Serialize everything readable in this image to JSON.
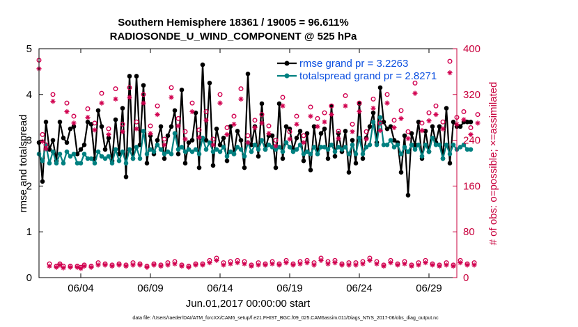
{
  "chart_data": {
    "type": "line",
    "title_line1": "Southern Hemisphere 18361 / 19005 = 96.611%",
    "title_line2": "RADIOSONDE_U_WIND_COMPONENT @ 525 hPa",
    "xlabel": "Jun.01,2017 00:00:00 start",
    "ylabel_left": "rmse and totalspread",
    "ylabel_right": "# of obs: o=possible; ×=assimilated",
    "footer": "data file: /Users/raeder/DAI/ATM_forcXX/CAM6_setup/f.e21.FHIST_BGC.f09_025.CAM6assim.011/Diags_NTrS_2017-06/obs_diag_output.nc",
    "xlim": [
      1,
      31
    ],
    "ylim_left": [
      0,
      5
    ],
    "ylim_right": [
      0,
      400
    ],
    "x_ticks": [
      4,
      9,
      14,
      19,
      24,
      29
    ],
    "x_tick_labels": [
      "06/04",
      "06/09",
      "06/14",
      "06/19",
      "06/24",
      "06/29"
    ],
    "y_left_ticks": [
      "0",
      "1",
      "2",
      "3",
      "4",
      "5"
    ],
    "y_right_ticks": [
      "0",
      "80",
      "160",
      "240",
      "320",
      "400"
    ],
    "legend": [
      {
        "label": "rmse grand pr = 3.2263"
      },
      {
        "label": "totalspread grand pr = 2.8271"
      }
    ],
    "colors": {
      "rmse": "#000000",
      "spread": "#008080",
      "obs": "#d1004f",
      "right_axis": "#c8003c",
      "legend_text": "#0b4fe0"
    },
    "x_start": 1.0,
    "x_step": 0.25,
    "series": [
      {
        "name": "rmse",
        "axis": "left",
        "values": [
          2.95,
          2.1,
          3.4,
          2.8,
          3.0,
          2.55,
          3.4,
          3.05,
          2.95,
          3.25,
          3.3,
          2.7,
          2.8,
          2.9,
          3.4,
          3.35,
          2.6,
          3.65,
          3.3,
          2.8,
          3.05,
          2.55,
          3.45,
          2.7,
          3.7,
          2.2,
          4.4,
          2.6,
          4.4,
          2.9,
          4.2,
          2.5,
          3.1,
          2.7,
          3.0,
          3.3,
          2.6,
          3.1,
          3.3,
          3.65,
          2.7,
          4.1,
          2.5,
          2.95,
          3.0,
          3.6,
          2.4,
          4.65,
          3.0,
          4.25,
          2.45,
          3.25,
          2.9,
          3.05,
          2.55,
          3.3,
          2.7,
          3.2,
          3.0,
          2.4,
          4.45,
          2.9,
          3.3,
          2.65,
          3.8,
          2.8,
          3.1,
          3.1,
          2.4,
          3.8,
          2.6,
          3.3,
          3.25,
          2.8,
          3.05,
          3.2,
          2.55,
          3.15,
          2.35,
          3.3,
          2.7,
          3.15,
          3.25,
          2.6,
          3.75,
          2.65,
          3.15,
          2.75,
          3.2,
          2.3,
          3.0,
          2.5,
          3.8,
          2.6,
          3.05,
          3.3,
          3.6,
          2.95,
          4.15,
          3.4,
          3.25,
          3.3,
          3.0,
          2.95,
          2.3,
          3.1,
          1.8,
          3.15,
          2.9,
          3.4,
          2.6,
          3.2,
          2.75,
          3.3,
          2.95,
          3.3,
          2.6,
          3.7,
          2.5,
          3.4,
          3.3,
          3.3,
          3.4,
          3.4,
          3.4
        ]
      },
      {
        "name": "totalspread",
        "axis": "left",
        "values": [
          2.7,
          2.55,
          2.9,
          2.5,
          2.75,
          2.5,
          2.7,
          2.5,
          2.75,
          2.65,
          2.7,
          2.5,
          2.5,
          2.7,
          2.6,
          2.6,
          2.5,
          2.75,
          2.65,
          2.6,
          2.65,
          2.5,
          2.8,
          2.55,
          2.75,
          2.5,
          2.8,
          2.6,
          2.85,
          2.6,
          3.2,
          2.7,
          2.8,
          2.75,
          2.9,
          2.8,
          2.7,
          2.75,
          2.7,
          3.15,
          2.8,
          2.85,
          2.75,
          2.8,
          2.75,
          2.8,
          2.7,
          3.05,
          2.8,
          2.95,
          2.75,
          2.8,
          2.75,
          2.85,
          2.65,
          2.75,
          2.7,
          2.85,
          2.8,
          2.65,
          2.95,
          2.75,
          2.9,
          2.8,
          3.0,
          2.8,
          2.9,
          2.85,
          2.8,
          2.85,
          2.75,
          2.95,
          2.85,
          2.75,
          2.8,
          2.9,
          2.7,
          2.75,
          2.7,
          2.85,
          2.7,
          2.85,
          2.85,
          2.8,
          2.9,
          2.75,
          2.85,
          2.8,
          2.85,
          2.7,
          2.9,
          2.7,
          3.05,
          2.7,
          2.85,
          2.9,
          3.4,
          2.9,
          3.5,
          2.9,
          2.9,
          3.0,
          2.85,
          2.9,
          2.7,
          2.85,
          2.75,
          2.9,
          2.8,
          2.9,
          2.65,
          2.9,
          2.75,
          3.05,
          2.9,
          2.9,
          2.6,
          2.9,
          2.7,
          2.9,
          2.8,
          2.85,
          2.9,
          2.8,
          2.8
        ]
      },
      {
        "name": "obs_possible",
        "axis": "right",
        "marker": "o",
        "values": [
          380,
          250,
          232,
          24,
          320,
          20,
          24,
          20,
          305,
          20,
          282,
          20,
          18,
          22,
          295,
          20,
          270,
          26,
          322,
          24,
          260,
          22,
          330,
          24,
          268,
          22,
          332,
          26,
          272,
          24,
          320,
          20,
          265,
          24,
          300,
          22,
          242,
          26,
          332,
          28,
          278,
          22,
          255,
          20,
          305,
          24,
          258,
          24,
          290,
          30,
          242,
          34,
          320,
          26,
          262,
          28,
          282,
          30,
          330,
          28,
          248,
          22,
          275,
          26,
          285,
          24,
          265,
          28,
          240,
          24,
          315,
          30,
          255,
          24,
          282,
          28,
          248,
          30,
          298,
          26,
          278,
          34,
          288,
          28,
          300,
          30,
          256,
          24,
          318,
          26,
          268,
          26,
          305,
          28,
          255,
          34,
          312,
          28,
          270,
          22,
          320,
          30,
          275,
          24,
          292,
          28,
          255,
          22,
          340,
          26,
          270,
          30,
          288,
          24,
          300,
          22,
          272,
          26,
          378,
          22,
          280,
          30,
          290,
          24,
          262,
          26,
          285
        ]
      },
      {
        "name": "obs_assimilated",
        "axis": "right",
        "marker": "x",
        "values": [
          365,
          238,
          225,
          20,
          308,
          18,
          22,
          17,
          290,
          18,
          270,
          18,
          16,
          20,
          280,
          18,
          258,
          22,
          305,
          22,
          250,
          20,
          312,
          22,
          255,
          20,
          315,
          22,
          260,
          22,
          305,
          18,
          252,
          22,
          285,
          20,
          232,
          22,
          315,
          24,
          265,
          20,
          242,
          18,
          290,
          22,
          245,
          22,
          275,
          26,
          232,
          30,
          305,
          22,
          250,
          24,
          268,
          26,
          312,
          24,
          236,
          20,
          262,
          22,
          270,
          22,
          252,
          24,
          230,
          22,
          300,
          26,
          242,
          22,
          268,
          24,
          236,
          26,
          282,
          22,
          264,
          30,
          272,
          24,
          285,
          26,
          243,
          22,
          300,
          22,
          255,
          22,
          290,
          24,
          242,
          30,
          296,
          24,
          257,
          20,
          305,
          26,
          262,
          22,
          278,
          24,
          243,
          20,
          322,
          22,
          257,
          26,
          274,
          22,
          285,
          20,
          260,
          22,
          358,
          20,
          268,
          26,
          276,
          22,
          250,
          22,
          270
        ]
      }
    ]
  }
}
